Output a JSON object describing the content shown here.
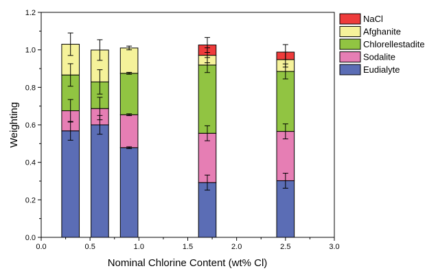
{
  "chart_data": {
    "type": "bar",
    "stacked": true,
    "xlabel": "Nominal Chlorine Content (wt% Cl)",
    "ylabel": "Weighting",
    "xlim": [
      0.0,
      3.0
    ],
    "ylim": [
      0.0,
      1.2
    ],
    "x_ticks": [
      "0.0",
      "0.5",
      "1.0",
      "1.5",
      "2.0",
      "2.5",
      "3.0"
    ],
    "y_ticks": [
      "0.0",
      "0.2",
      "0.4",
      "0.6",
      "0.8",
      "1.0",
      "1.2"
    ],
    "x": [
      0.3,
      0.6,
      0.9,
      1.7,
      2.5
    ],
    "bar_width": 0.18,
    "legend_position": "top-right",
    "series": [
      {
        "name": "Eudialyte",
        "color": "#5b6db5",
        "values": [
          0.568,
          0.6,
          0.478,
          0.292,
          0.302
        ],
        "errors": [
          0.05,
          0.05,
          0.005,
          0.04,
          0.04
        ]
      },
      {
        "name": "Sodalite",
        "color": "#e67eb4",
        "values": [
          0.107,
          0.087,
          0.176,
          0.263,
          0.263
        ],
        "errors": [
          0.06,
          0.06,
          0.005,
          0.04,
          0.04
        ]
      },
      {
        "name": "Chlorellestadite",
        "color": "#91c442",
        "values": [
          0.191,
          0.142,
          0.221,
          0.364,
          0.32
        ],
        "errors": [
          0.06,
          0.065,
          0.005,
          0.04,
          0.04
        ]
      },
      {
        "name": "Afghanite",
        "color": "#f5f29a",
        "values": [
          0.164,
          0.17,
          0.135,
          0.052,
          0.063
        ],
        "errors": [
          0.06,
          0.055,
          0.01,
          0.04,
          0.04
        ]
      },
      {
        "name": "NaCl",
        "color": "#ee3b3b",
        "values": [
          0,
          0,
          0,
          0.055,
          0.04
        ],
        "errors": [
          0,
          0,
          0,
          0.04,
          0.04
        ]
      }
    ],
    "legend_order": [
      "NaCl",
      "Afghanite",
      "Chlorellestadite",
      "Sodalite",
      "Eudialyte"
    ]
  }
}
